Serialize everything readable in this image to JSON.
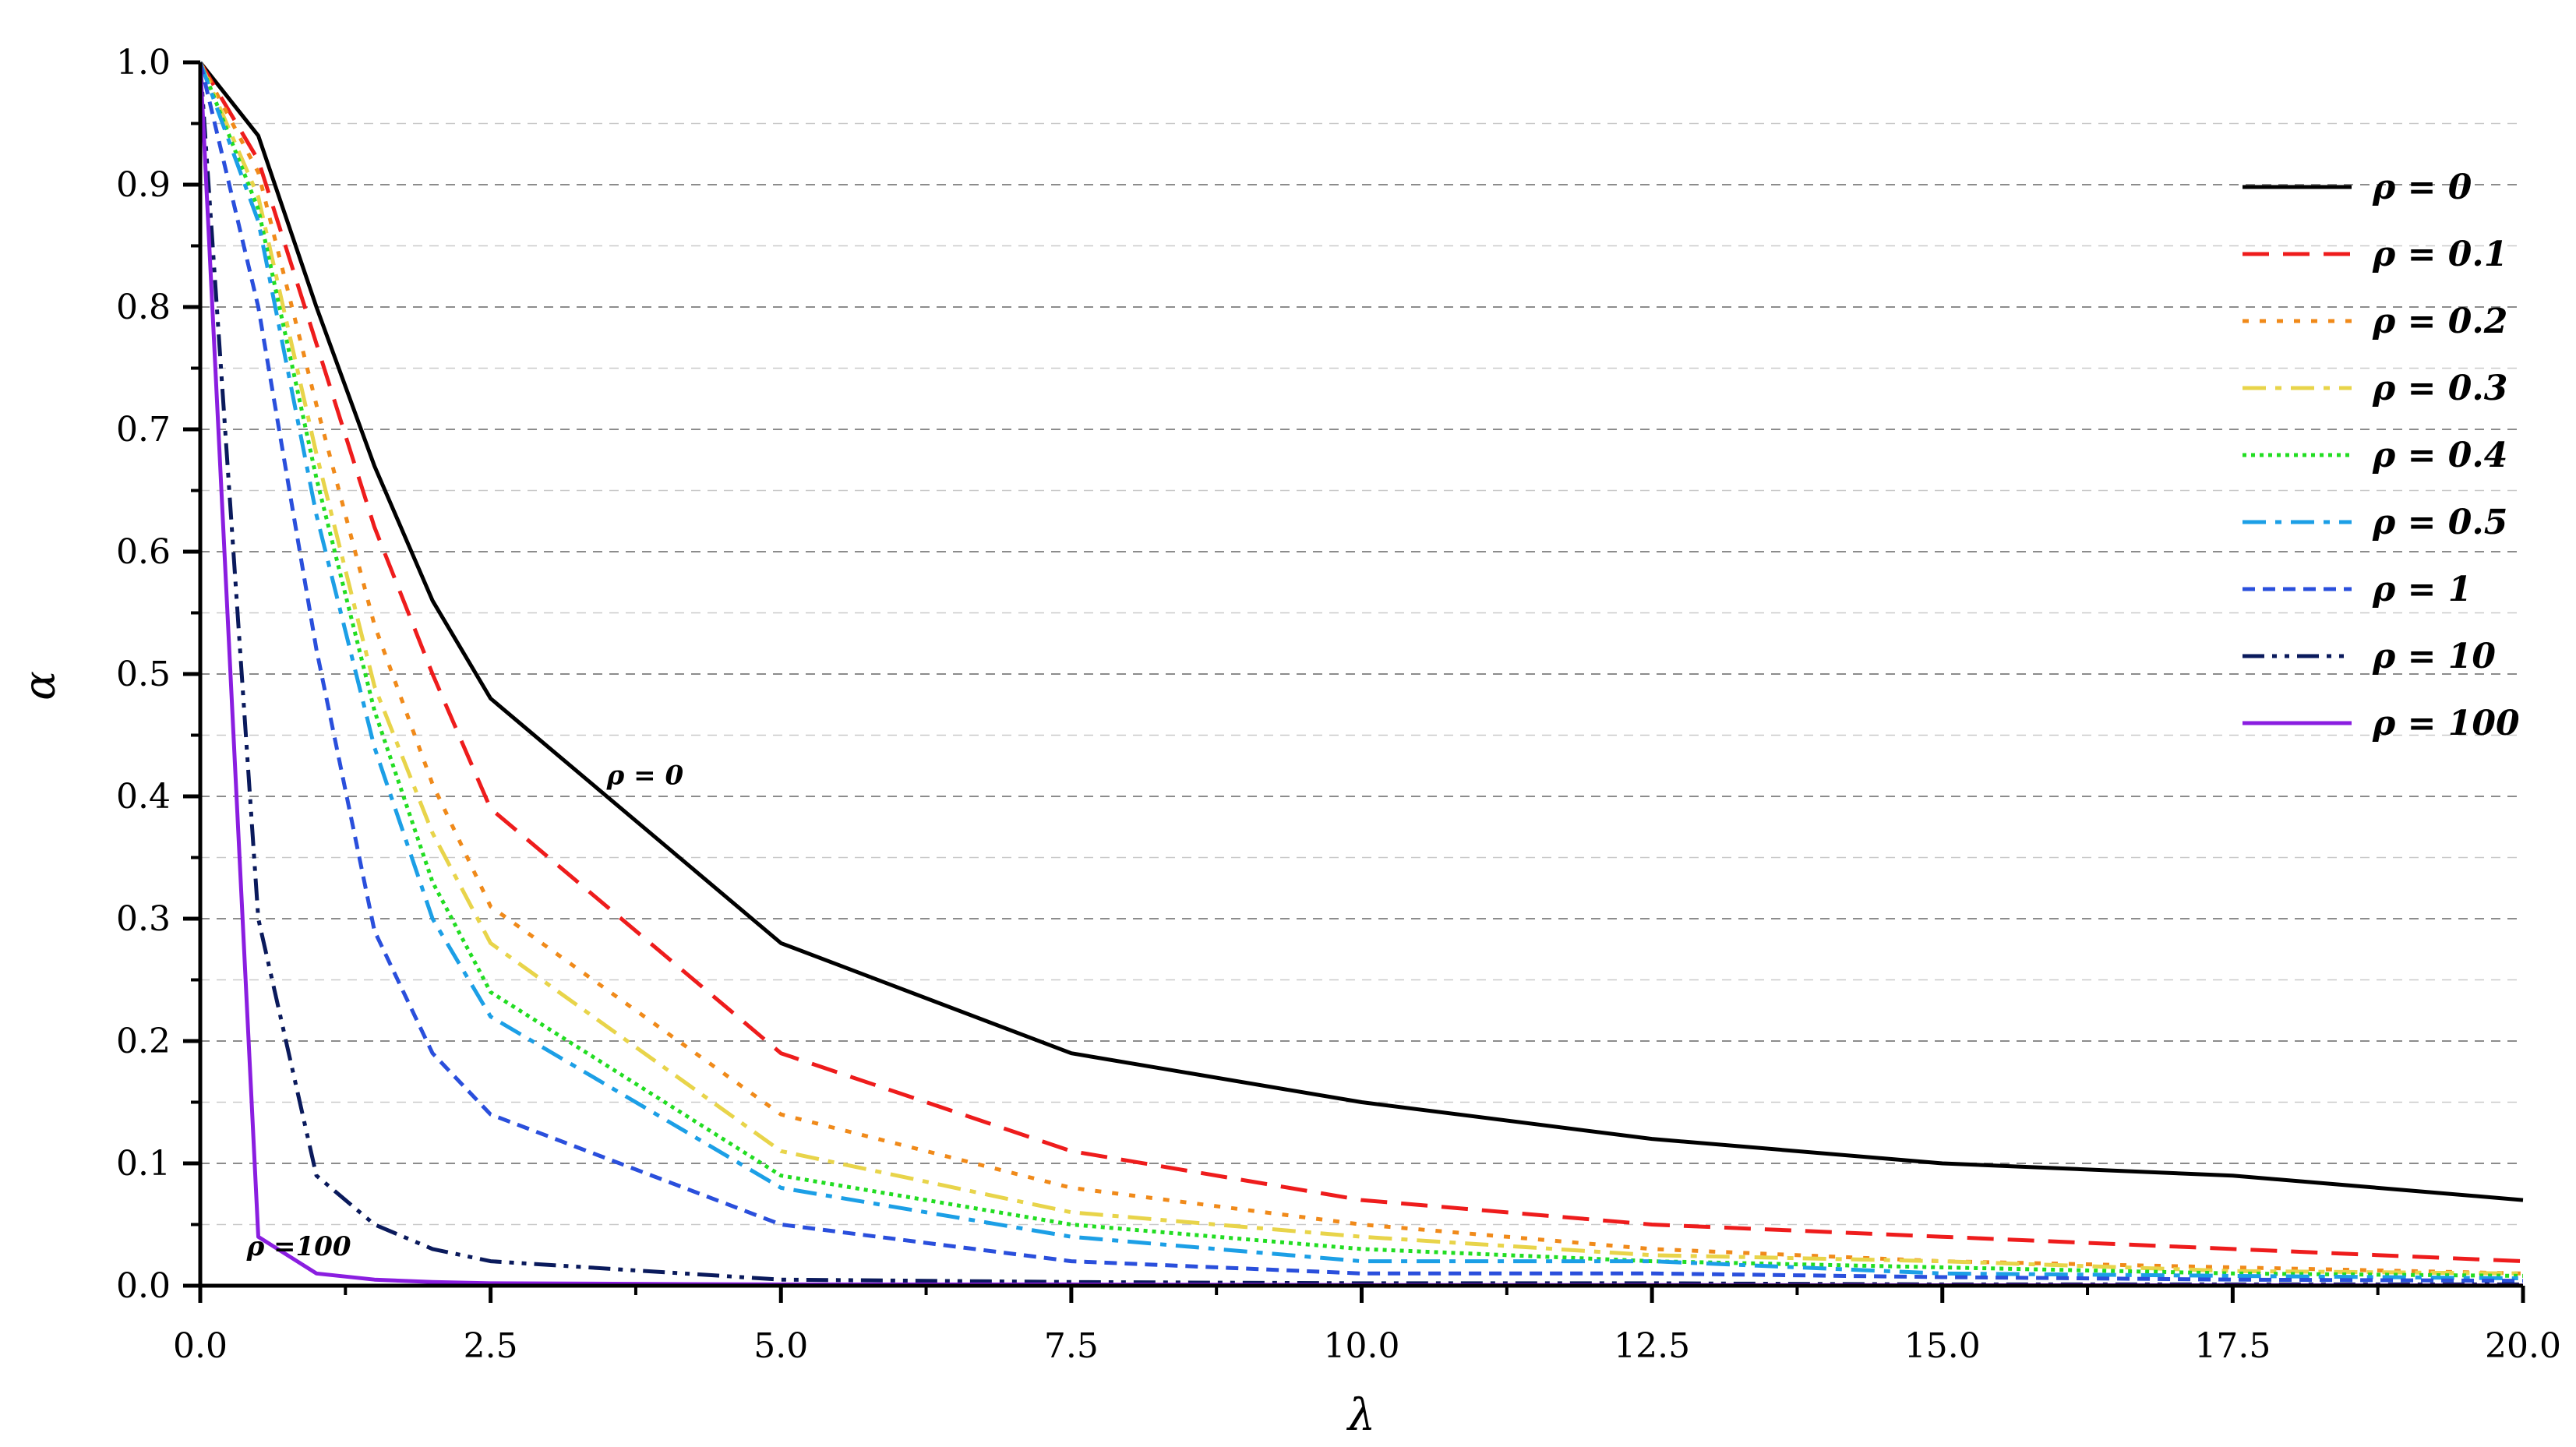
{
  "chart_data": {
    "type": "line",
    "title": "",
    "xlabel": "λ",
    "ylabel": "α",
    "xlim": [
      0,
      20
    ],
    "ylim": [
      0,
      1
    ],
    "x_ticks": [
      "0.0",
      "2.5",
      "5.0",
      "7.5",
      "10.0",
      "12.5",
      "15.0",
      "17.5",
      "20.0"
    ],
    "y_ticks": [
      "0.0",
      "0.1",
      "0.2",
      "0.3",
      "0.4",
      "0.5",
      "0.6",
      "0.7",
      "0.8",
      "0.9",
      "1.0"
    ],
    "grid": "horizontal dashed",
    "legend_position": "top-right",
    "x": [
      0,
      0.5,
      1,
      1.5,
      2,
      2.5,
      5,
      7.5,
      10,
      12.5,
      15,
      17.5,
      20
    ],
    "series": [
      {
        "name": "ρ = 0",
        "color": "#000000",
        "dash": "solid",
        "values": [
          1.0,
          0.94,
          0.8,
          0.67,
          0.56,
          0.48,
          0.28,
          0.19,
          0.15,
          0.12,
          0.1,
          0.09,
          0.07
        ]
      },
      {
        "name": "ρ = 0.1",
        "color": "#ee1c1c",
        "dash": "dash",
        "values": [
          1.0,
          0.92,
          0.77,
          0.62,
          0.5,
          0.39,
          0.19,
          0.11,
          0.07,
          0.05,
          0.04,
          0.03,
          0.02
        ]
      },
      {
        "name": "ρ = 0.2",
        "color": "#f08a1a",
        "dash": "dot",
        "values": [
          1.0,
          0.91,
          0.72,
          0.54,
          0.41,
          0.31,
          0.14,
          0.08,
          0.05,
          0.03,
          0.02,
          0.015,
          0.01
        ]
      },
      {
        "name": "ρ = 0.3",
        "color": "#e8d44a",
        "dash": "dashdot",
        "values": [
          1.0,
          0.89,
          0.68,
          0.49,
          0.37,
          0.28,
          0.11,
          0.06,
          0.04,
          0.025,
          0.02,
          0.012,
          0.01
        ]
      },
      {
        "name": "ρ = 0.4",
        "color": "#22dd22",
        "dash": "finedot",
        "values": [
          1.0,
          0.88,
          0.66,
          0.47,
          0.33,
          0.24,
          0.09,
          0.05,
          0.03,
          0.02,
          0.015,
          0.01,
          0.008
        ]
      },
      {
        "name": "ρ = 0.5",
        "color": "#1c9fe6",
        "dash": "dashdot",
        "values": [
          1.0,
          0.87,
          0.63,
          0.44,
          0.3,
          0.22,
          0.08,
          0.04,
          0.02,
          0.02,
          0.01,
          0.008,
          0.006
        ]
      },
      {
        "name": "ρ = 1",
        "color": "#2a4fdc",
        "dash": "shortdash",
        "values": [
          1.0,
          0.8,
          0.52,
          0.29,
          0.19,
          0.14,
          0.05,
          0.02,
          0.01,
          0.01,
          0.007,
          0.005,
          0.004
        ]
      },
      {
        "name": "ρ = 10",
        "color": "#0a1a5c",
        "dash": "dashdotdot",
        "values": [
          1.0,
          0.3,
          0.09,
          0.05,
          0.03,
          0.02,
          0.005,
          0.003,
          0.002,
          0.002,
          0.001,
          0.001,
          0.001
        ]
      },
      {
        "name": "ρ = 100",
        "color": "#8a1ee0",
        "dash": "solid",
        "values": [
          1.0,
          0.04,
          0.01,
          0.005,
          0.003,
          0.002,
          0.001,
          0.001,
          0.0005,
          0.0005,
          0.0003,
          0.0003,
          0.0002
        ]
      }
    ],
    "annotations": [
      {
        "text": "ρ = 0",
        "x": 3.5,
        "y": 0.41
      },
      {
        "text": "ρ =100",
        "x": 0.4,
        "y": 0.025
      }
    ]
  }
}
